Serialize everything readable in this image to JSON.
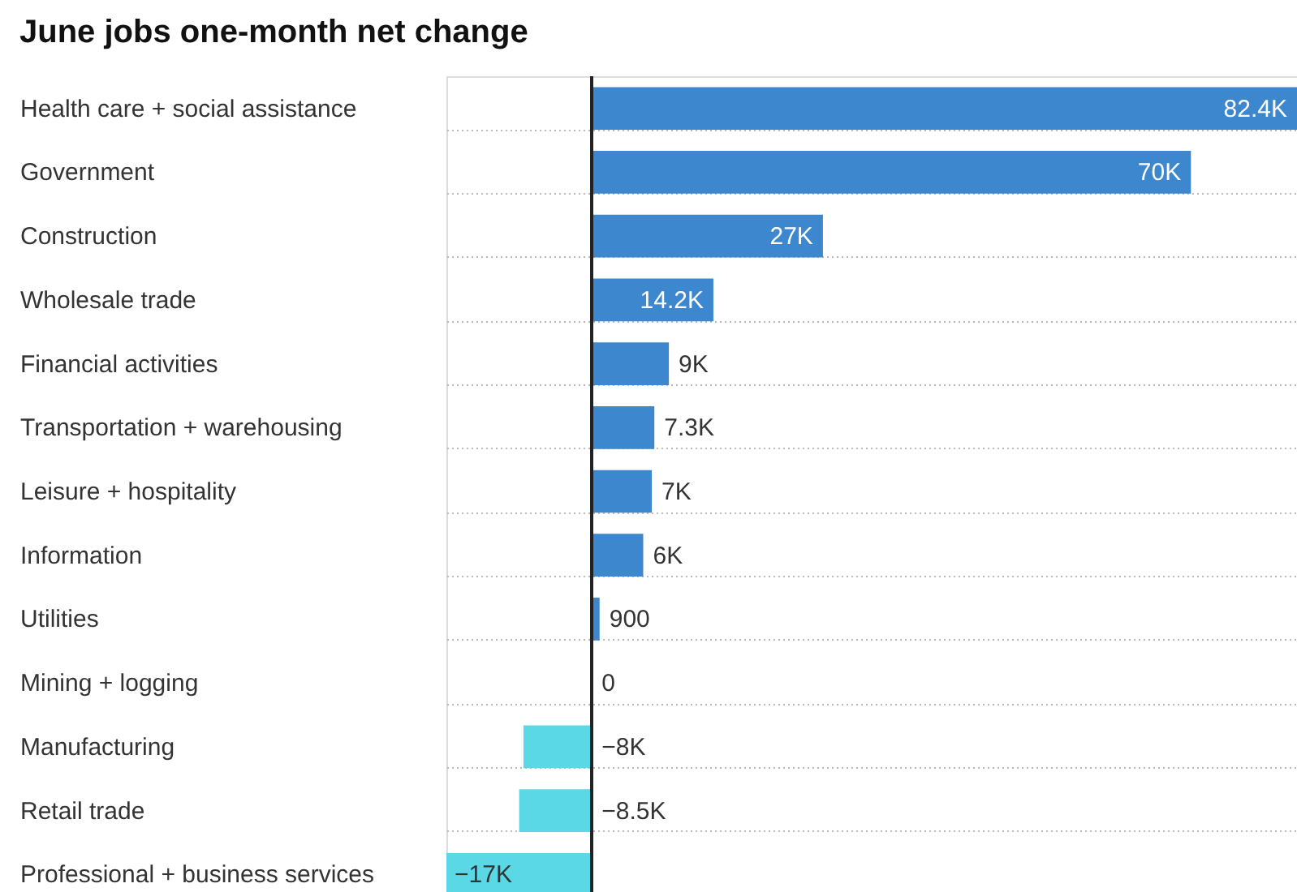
{
  "chart_data": {
    "type": "bar",
    "orientation": "horizontal",
    "title": "June jobs one-month net change",
    "categories": [
      "Health care + social assistance",
      "Government",
      "Construction",
      "Wholesale trade",
      "Financial activities",
      "Transportation + warehousing",
      "Leisure + hospitality",
      "Information",
      "Utilities",
      "Mining + logging",
      "Manufacturing",
      "Retail trade",
      "Professional + business services"
    ],
    "values": [
      82400,
      70000,
      27000,
      14200,
      9000,
      7300,
      7000,
      6000,
      900,
      0,
      -8000,
      -8500,
      -17000
    ],
    "value_labels": [
      "82.4K",
      "70K",
      "27K",
      "14.2K",
      "9K",
      "7.3K",
      "7K",
      "6K",
      "900",
      "0",
      "−8K",
      "−8.5K",
      "−17K"
    ],
    "colors": [
      "#3d87cf",
      "#3d87cf",
      "#3d87cf",
      "#3d87cf",
      "#3d87cf",
      "#3d87cf",
      "#3d87cf",
      "#3d87cf",
      "#3d87cf",
      "#3d87cf",
      "#5ad8e6",
      "#5ad8e6",
      "#5ad8e6"
    ],
    "grid": "y"
  }
}
